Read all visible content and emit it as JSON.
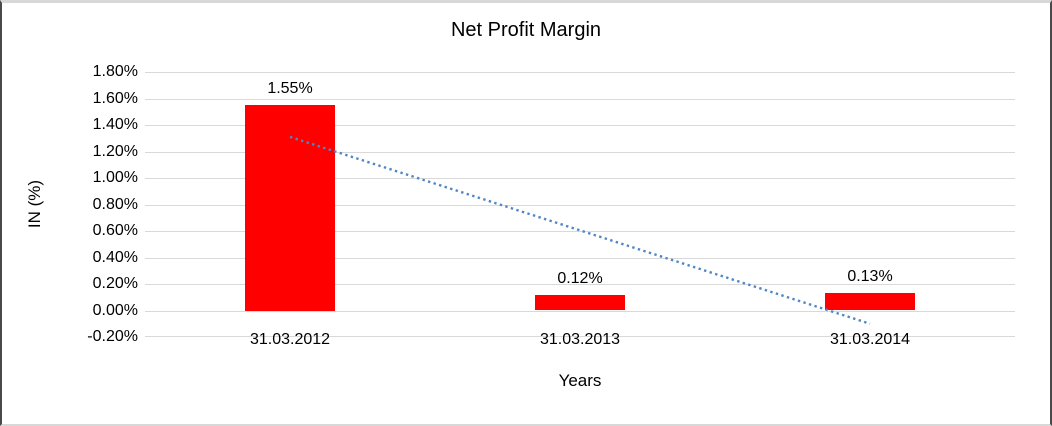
{
  "chart_data": {
    "type": "bar",
    "title": "Net Profit Margin",
    "xlabel": "Years",
    "ylabel": "IN (%)",
    "categories": [
      "31.03.2012",
      "31.03.2013",
      "31.03.2014"
    ],
    "values": [
      1.55,
      0.12,
      0.13
    ],
    "data_labels": [
      "1.55%",
      "0.12%",
      "0.13%"
    ],
    "y_ticks": [
      {
        "label": "1.80%",
        "value": 1.8
      },
      {
        "label": "1.60%",
        "value": 1.6
      },
      {
        "label": "1.40%",
        "value": 1.4
      },
      {
        "label": "1.20%",
        "value": 1.2
      },
      {
        "label": "1.00%",
        "value": 1.0
      },
      {
        "label": "0.80%",
        "value": 0.8
      },
      {
        "label": "0.60%",
        "value": 0.6
      },
      {
        "label": "0.40%",
        "value": 0.4
      },
      {
        "label": "0.20%",
        "value": 0.2
      },
      {
        "label": "0.00%",
        "value": 0.0
      },
      {
        "label": "-0.20%",
        "value": -0.2
      }
    ],
    "ylim": [
      -0.2,
      1.8
    ],
    "grid": true,
    "legend": "none",
    "bar_color": "#ff0000",
    "gridline_color": "#d9d9d9",
    "text_color": "#000000",
    "trendline": {
      "style": "dotted",
      "color": "#4f86c8",
      "start_value": 1.31,
      "end_value": -0.1
    }
  }
}
